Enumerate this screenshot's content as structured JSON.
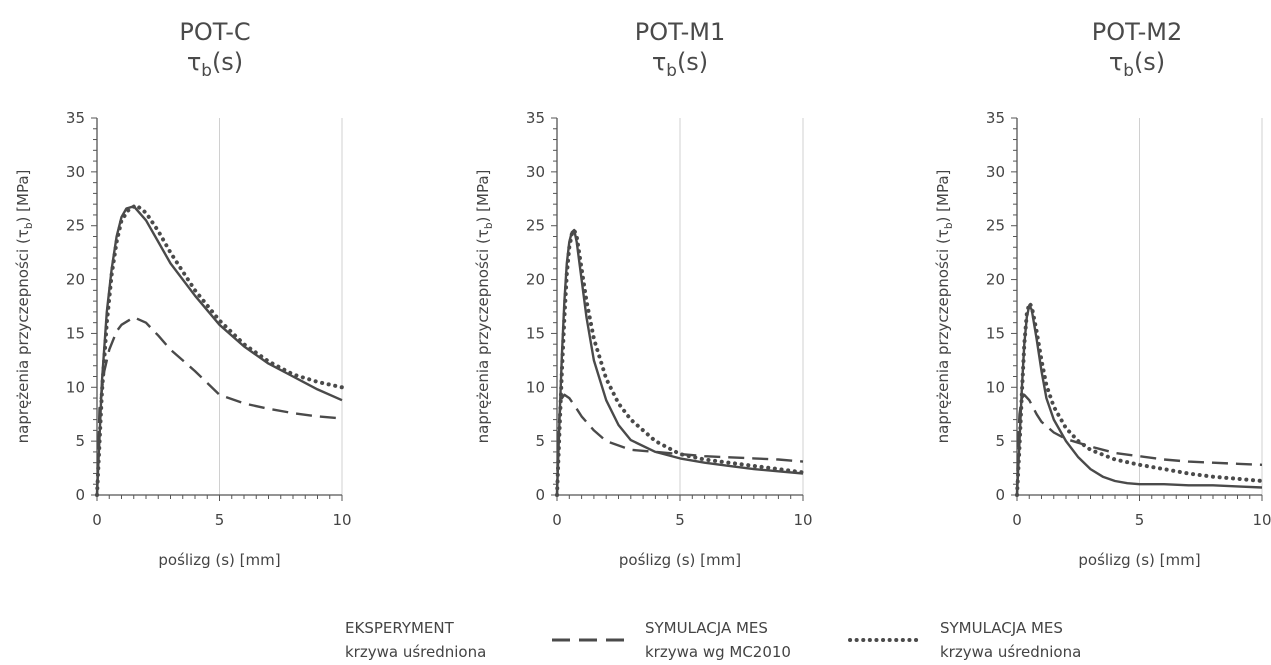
{
  "chart_data": [
    {
      "type": "line",
      "title": "POT-C",
      "subtitle": "τb(s)",
      "xlabel": "poślizg (s) [mm]",
      "ylabel": "naprężenia przyczepności (τb) [MPa]",
      "xlim": [
        0,
        10
      ],
      "ylim": [
        0,
        35
      ],
      "xticks": [
        "0",
        "5",
        "10"
      ],
      "yticks": [
        "0",
        "5",
        "10",
        "15",
        "20",
        "25",
        "30",
        "35"
      ],
      "grid": "x-major",
      "series": [
        {
          "name": "EKSPERYMENT krzywa uśredniona",
          "style": "solid",
          "x": [
            0,
            0.2,
            0.4,
            0.6,
            0.8,
            1.0,
            1.2,
            1.5,
            2.0,
            2.5,
            3.0,
            4.0,
            5.0,
            6.0,
            7.0,
            8.0,
            9.0,
            10.0
          ],
          "y": [
            0,
            10.5,
            17,
            21,
            24,
            25.8,
            26.6,
            26.8,
            25.5,
            23.5,
            21.5,
            18.5,
            15.8,
            13.8,
            12.2,
            11.0,
            9.8,
            8.8
          ]
        },
        {
          "name": "SYMULACJA MES krzywa wg MC2010",
          "style": "dashed",
          "x": [
            0,
            0.1,
            0.3,
            0.5,
            0.8,
            1.0,
            1.5,
            2.0,
            2.5,
            3.0,
            4.0,
            5.0,
            6.0,
            7.0,
            8.0,
            9.0,
            10.0
          ],
          "y": [
            0,
            8,
            11.5,
            13.5,
            15.2,
            15.8,
            16.5,
            16,
            14.8,
            13.5,
            11.5,
            9.3,
            8.5,
            8.0,
            7.6,
            7.3,
            7.1
          ]
        },
        {
          "name": "SYMULACJA MES krzywa uśredniona",
          "style": "dotted",
          "x": [
            0,
            0.2,
            0.4,
            0.6,
            0.8,
            1.0,
            1.3,
            1.6,
            2.0,
            2.5,
            3.0,
            4.0,
            5.0,
            6.0,
            7.0,
            8.0,
            9.0,
            10.0
          ],
          "y": [
            0,
            9.5,
            16,
            20.5,
            23.5,
            25.5,
            26.5,
            26.9,
            26.2,
            24.5,
            22.5,
            19,
            16.2,
            14,
            12.4,
            11.2,
            10.5,
            10.0
          ]
        }
      ]
    },
    {
      "type": "line",
      "title": "POT-M1",
      "subtitle": "τb(s)",
      "xlabel": "poślizg (s) [mm]",
      "ylabel": "naprężenia przyczepności (τb) [MPa]",
      "xlim": [
        0,
        10
      ],
      "ylim": [
        0,
        35
      ],
      "xticks": [
        "0",
        "5",
        "10"
      ],
      "yticks": [
        "0",
        "5",
        "10",
        "15",
        "20",
        "25",
        "30",
        "35"
      ],
      "grid": "x-major",
      "series": [
        {
          "name": "EKSPERYMENT krzywa uśredniona",
          "style": "solid",
          "x": [
            0,
            0.1,
            0.2,
            0.3,
            0.4,
            0.5,
            0.6,
            0.7,
            0.8,
            1.0,
            1.2,
            1.5,
            2.0,
            2.5,
            3.0,
            4.0,
            5.0,
            6.0,
            7.0,
            8.0,
            9.0,
            10.0
          ],
          "y": [
            0,
            7,
            13,
            18,
            21.5,
            23.5,
            24.4,
            24.6,
            23.5,
            20,
            16.5,
            12.5,
            8.8,
            6.5,
            5.1,
            4.0,
            3.4,
            3.0,
            2.7,
            2.4,
            2.2,
            2.0
          ]
        },
        {
          "name": "SYMULACJA MES krzywa wg MC2010",
          "style": "dashed",
          "x": [
            0,
            0.05,
            0.1,
            0.2,
            0.3,
            0.5,
            0.8,
            1.0,
            1.5,
            2.0,
            3.0,
            4.0,
            5.0,
            6.0,
            7.0,
            8.0,
            9.0,
            10.0
          ],
          "y": [
            0,
            5,
            7.5,
            9,
            9.3,
            9.0,
            8.0,
            7.3,
            6.0,
            5.0,
            4.2,
            4.0,
            3.8,
            3.6,
            3.5,
            3.4,
            3.3,
            3.1
          ]
        },
        {
          "name": "SYMULACJA MES krzywa uśredniona",
          "style": "dotted",
          "x": [
            0,
            0.1,
            0.2,
            0.3,
            0.4,
            0.5,
            0.6,
            0.7,
            0.8,
            1.0,
            1.2,
            1.5,
            2.0,
            2.5,
            3.0,
            4.0,
            5.0,
            6.0,
            7.0,
            8.0,
            9.0,
            10.0
          ],
          "y": [
            0,
            6,
            11.5,
            16.5,
            20.5,
            23,
            24.2,
            24.6,
            24,
            21,
            18,
            14.5,
            10.8,
            8.5,
            7.0,
            5.0,
            3.8,
            3.3,
            3.0,
            2.7,
            2.4,
            2.1
          ]
        }
      ]
    },
    {
      "type": "line",
      "title": "POT-M2",
      "subtitle": "τb(s)",
      "xlabel": "poślizg (s) [mm]",
      "ylabel": "naprężenia przyczepności (τb) [MPa]",
      "xlim": [
        0,
        10
      ],
      "ylim": [
        0,
        35
      ],
      "xticks": [
        "0",
        "5",
        "10"
      ],
      "yticks": [
        "0",
        "5",
        "10",
        "15",
        "20",
        "25",
        "30",
        "35"
      ],
      "grid": "x-major",
      "series": [
        {
          "name": "EKSPERYMENT krzywa uśredniona",
          "style": "solid",
          "x": [
            0,
            0.1,
            0.2,
            0.3,
            0.4,
            0.5,
            0.6,
            0.8,
            1.0,
            1.2,
            1.5,
            2.0,
            2.5,
            3.0,
            3.5,
            4.0,
            4.5,
            5.0,
            6.0,
            7.0,
            8.0,
            9.0,
            10.0
          ],
          "y": [
            0,
            5,
            10,
            14,
            16.5,
            17.6,
            17.2,
            14.5,
            11.5,
            9.0,
            7.0,
            5.0,
            3.5,
            2.4,
            1.7,
            1.3,
            1.1,
            1.0,
            1.0,
            0.9,
            0.9,
            0.8,
            0.7
          ]
        },
        {
          "name": "SYMULACJA MES krzywa wg MC2010",
          "style": "dashed",
          "x": [
            0,
            0.05,
            0.1,
            0.2,
            0.3,
            0.5,
            0.8,
            1.0,
            1.5,
            2.0,
            3.0,
            4.0,
            5.0,
            6.0,
            7.0,
            8.0,
            9.0,
            10.0
          ],
          "y": [
            0,
            5,
            7.5,
            9,
            9.3,
            8.8,
            7.5,
            6.8,
            5.8,
            5.2,
            4.5,
            3.9,
            3.6,
            3.3,
            3.1,
            3.0,
            2.9,
            2.8
          ]
        },
        {
          "name": "SYMULACJA MES krzywa uśredniona",
          "style": "dotted",
          "x": [
            0,
            0.1,
            0.2,
            0.3,
            0.4,
            0.5,
            0.6,
            0.8,
            1.0,
            1.2,
            1.5,
            2.0,
            2.5,
            3.0,
            4.0,
            5.0,
            6.0,
            7.0,
            8.0,
            9.0,
            10.0
          ],
          "y": [
            0,
            4.5,
            9.5,
            14,
            16.8,
            17.8,
            17.5,
            15.2,
            12.5,
            10.2,
            8.2,
            6.2,
            5.0,
            4.2,
            3.3,
            2.8,
            2.4,
            2.0,
            1.7,
            1.5,
            1.3
          ]
        }
      ]
    }
  ],
  "legend": {
    "position": "bottom-center",
    "items": [
      {
        "line1": "EKSPERYMENT",
        "line2": "krzywa uśredniona",
        "style": "solid"
      },
      {
        "line1": "SYMULACJA MES",
        "line2": "krzywa wg MC2010",
        "style": "dashed"
      },
      {
        "line1": "SYMULACJA MES",
        "line2": "krzywa uśredniona",
        "style": "dotted"
      }
    ]
  },
  "colors": {
    "line": "#4a4a4a",
    "grid": "#d0d0d0",
    "axis": "#555555"
  }
}
